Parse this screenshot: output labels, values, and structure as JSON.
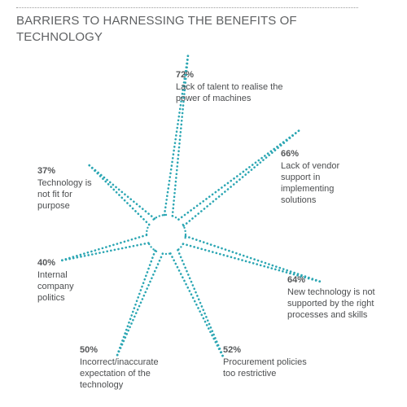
{
  "title": "BARRIERS TO HARNESSING THE BENEFITS OF TECHNOLOGY",
  "colors": {
    "rays": "#2ba6b3",
    "text": "#4c4e50",
    "title": "#5f6163"
  },
  "chart_data": {
    "type": "radial-bar",
    "title": "BARRIERS TO HARNESSING THE BENEFITS OF TECHNOLOGY",
    "unit": "%",
    "items": [
      {
        "label": "Lack of talent to realise the power of machines",
        "value": 72,
        "value_label": "72%"
      },
      {
        "label": "Lack of vendor support in implementing solutions",
        "value": 66,
        "value_label": "66%"
      },
      {
        "label": "New technology is not supported by the right processes and skills",
        "value": 64,
        "value_label": "64%"
      },
      {
        "label": "Procurement policies too restrictive",
        "value": 52,
        "value_label": "52%"
      },
      {
        "label": "Incorrect/inaccurate expectation of the technology",
        "value": 50,
        "value_label": "50%"
      },
      {
        "label": "Internal company politics",
        "value": 40,
        "value_label": "40%"
      },
      {
        "label": "Technology is not fit for purpose",
        "value": 37,
        "value_label": "37%"
      }
    ]
  }
}
